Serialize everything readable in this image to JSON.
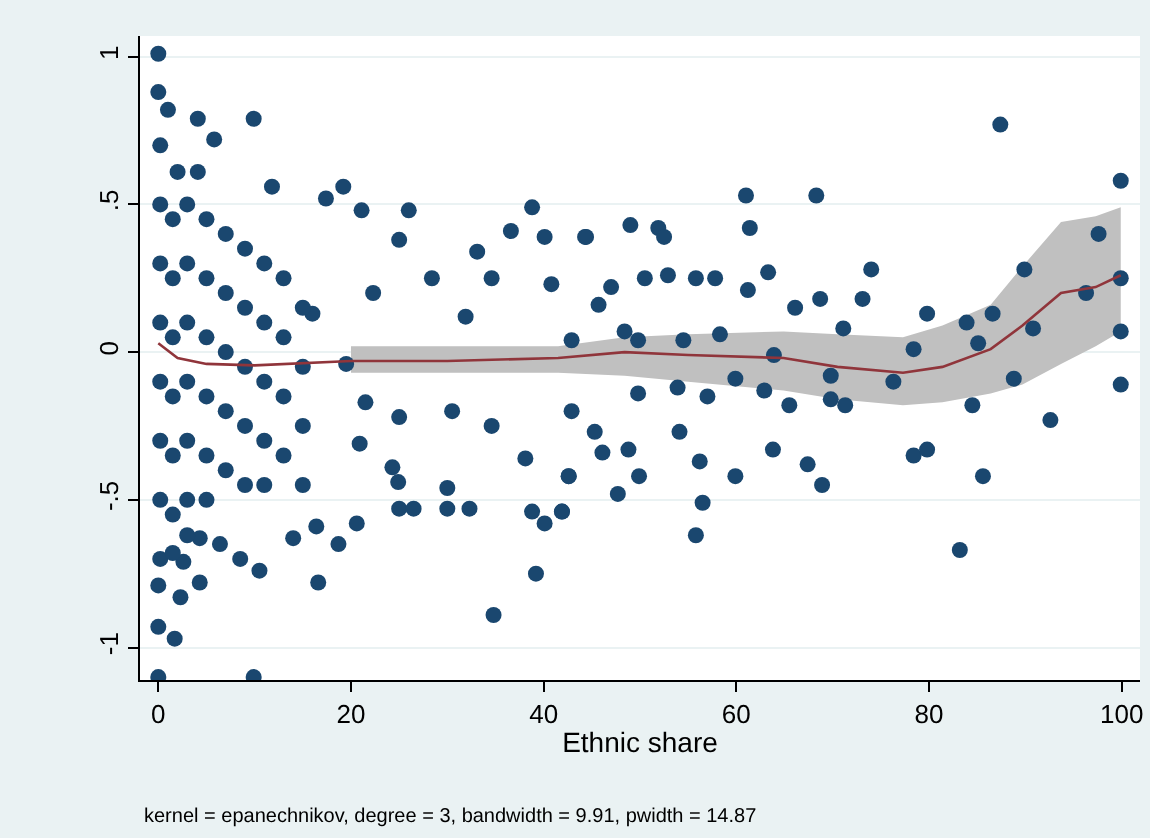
{
  "chart_data": {
    "type": "scatter",
    "xlabel": "Ethnic share",
    "annotations": [
      "kernel = epanechnikov, degree = 3, bandwidth = 9.91, pwidth = 14.87"
    ],
    "xlim": [
      -1.9,
      101.9
    ],
    "xticks": [
      0,
      20,
      40,
      60,
      80,
      100
    ],
    "ylim": [
      -1.11,
      1.07
    ],
    "yticks": [
      -1,
      {
        "value": -0.5,
        "label": "-.5"
      },
      0,
      {
        "value": 0.5,
        "label": ".5"
      },
      1
    ],
    "grid": "y",
    "marker": "circle",
    "series": [
      {
        "color": "#1a476f",
        "x": [
          87.4,
          99.9,
          61.0,
          68.3,
          61.4,
          51.9,
          49.0,
          52.5,
          44.4,
          97.6,
          63.3,
          74.0,
          89.9,
          55.8,
          57.8,
          99.9,
          96.3,
          68.7,
          73.1,
          61.2,
          66.1,
          79.8,
          86.6,
          83.9,
          71.1,
          90.8,
          99.9,
          78.4,
          85.1,
          63.9,
          76.3,
          69.8,
          88.8,
          99.9,
          69.8,
          71.3,
          84.5,
          65.5,
          92.6,
          57.0,
          62.9,
          59.9,
          63.8,
          67.4,
          68.9,
          78.4,
          79.8,
          85.6,
          59.9,
          56.2,
          56.5,
          55.8,
          83.2,
          49.9,
          47.7,
          41.9,
          42.6,
          48.8,
          46.1,
          54.1,
          45.3,
          49.8,
          53.9,
          42.9,
          50.5,
          47.0,
          52.9,
          45.7,
          48.4,
          49.8,
          54.5,
          58.3,
          0,
          0,
          1.0,
          4.1,
          9.9,
          5.8,
          2.0,
          4.1,
          11.8,
          19.2,
          21.1,
          26.0,
          38.8,
          17.4,
          25.0,
          33.1,
          36.6,
          40.1,
          44.3,
          28.4,
          34.6,
          22.3,
          40.8,
          16.0,
          31.9,
          42.9,
          19.5,
          21.5,
          25.0,
          30.5,
          34.6,
          20.9,
          24.3,
          24.9,
          25.0,
          26.5,
          30.0,
          30.0,
          32.3,
          20.6,
          16.4,
          18.7,
          14.0,
          16.6,
          34.8,
          39.2,
          38.8,
          40.1,
          41.9,
          42.6,
          38.1,
          0,
          9.9,
          1.7,
          0,
          0,
          2.3,
          4.3,
          8.5,
          10.5,
          6.4,
          2.6,
          4.3,
          0.2,
          0.2,
          0.2,
          0.2,
          0.2,
          0.2,
          0.2,
          0.2,
          1.5,
          1.5,
          1.5,
          1.5,
          1.5,
          1.5,
          1.5,
          3,
          3,
          3,
          3,
          3,
          3,
          3,
          5,
          5,
          5,
          5,
          5,
          5,
          7,
          7,
          7,
          7,
          7,
          9,
          9,
          9,
          9,
          9,
          11,
          11,
          11,
          11,
          11,
          13,
          13,
          13,
          13,
          15,
          15,
          15,
          15
        ],
        "values": [
          0.77,
          0.58,
          0.53,
          0.53,
          0.42,
          0.42,
          0.43,
          0.39,
          0.39,
          0.4,
          0.27,
          0.28,
          0.28,
          0.25,
          0.25,
          0.25,
          0.2,
          0.18,
          0.18,
          0.21,
          0.15,
          0.13,
          0.13,
          0.1,
          0.08,
          0.08,
          0.07,
          0.01,
          0.03,
          -0.01,
          -0.1,
          -0.08,
          -0.09,
          -0.11,
          -0.16,
          -0.18,
          -0.18,
          -0.18,
          -0.23,
          -0.15,
          -0.13,
          -0.09,
          -0.33,
          -0.38,
          -0.45,
          -0.35,
          -0.33,
          -0.42,
          -0.42,
          -0.37,
          -0.51,
          -0.62,
          -0.67,
          -0.42,
          -0.48,
          -0.54,
          -0.42,
          -0.33,
          -0.34,
          -0.27,
          -0.27,
          -0.14,
          -0.12,
          -0.2,
          0.25,
          0.22,
          0.26,
          0.16,
          0.07,
          0.04,
          0.04,
          0.06,
          1.01,
          0.88,
          0.82,
          0.79,
          0.79,
          0.72,
          0.61,
          0.61,
          0.56,
          0.56,
          0.48,
          0.48,
          0.49,
          0.52,
          0.38,
          0.34,
          0.41,
          0.39,
          0.39,
          0.25,
          0.25,
          0.2,
          0.23,
          0.13,
          0.12,
          0.04,
          -0.04,
          -0.17,
          -0.22,
          -0.2,
          -0.25,
          -0.31,
          -0.39,
          -0.44,
          -0.53,
          -0.53,
          -0.46,
          -0.53,
          -0.53,
          -0.58,
          -0.59,
          -0.65,
          -0.63,
          -0.78,
          -0.89,
          -0.75,
          -0.54,
          -0.58,
          -0.54,
          -0.42,
          -0.36,
          -1.1,
          -1.1,
          -0.97,
          -0.93,
          -0.79,
          -0.83,
          -0.78,
          -0.7,
          -0.74,
          -0.65,
          -0.71,
          -0.63,
          0.7,
          0.5,
          0.3,
          0.1,
          -0.1,
          -0.3,
          -0.5,
          -0.7,
          0.45,
          0.25,
          0.05,
          -0.15,
          -0.35,
          -0.55,
          -0.68,
          0.5,
          0.3,
          0.1,
          -0.1,
          -0.3,
          -0.5,
          -0.62,
          0.45,
          0.25,
          0.05,
          -0.15,
          -0.35,
          -0.5,
          0.4,
          0.2,
          0.0,
          -0.2,
          -0.4,
          0.35,
          0.15,
          -0.05,
          -0.25,
          -0.45,
          0.3,
          0.1,
          -0.1,
          -0.3,
          -0.45,
          0.25,
          0.05,
          -0.15,
          -0.35,
          0.15,
          -0.05,
          -0.25,
          -0.45
        ]
      },
      {
        "type": "line",
        "marker": "none",
        "color": "#90353b",
        "x": [
          0,
          2,
          5,
          10,
          20,
          30,
          41.5,
          48.4,
          55,
          64.9,
          70.5,
          77.3,
          81.4,
          86.4,
          89.7,
          93.7,
          97.3,
          99.9
        ],
        "values": [
          0.03,
          -0.02,
          -0.04,
          -0.045,
          -0.03,
          -0.03,
          -0.02,
          0.0,
          -0.01,
          -0.02,
          -0.05,
          -0.07,
          -0.05,
          0.01,
          0.09,
          0.2,
          0.22,
          0.26
        ],
        "lower": [
          null,
          null,
          null,
          null,
          -0.07,
          -0.07,
          -0.07,
          -0.08,
          -0.1,
          -0.13,
          -0.16,
          -0.18,
          -0.17,
          -0.14,
          -0.11,
          -0.04,
          0.02,
          0.07
        ],
        "upper": [
          null,
          null,
          null,
          null,
          0.02,
          0.02,
          0.02,
          0.05,
          0.06,
          0.07,
          0.06,
          0.05,
          0.09,
          0.16,
          0.29,
          0.44,
          0.46,
          0.49
        ]
      }
    ]
  }
}
